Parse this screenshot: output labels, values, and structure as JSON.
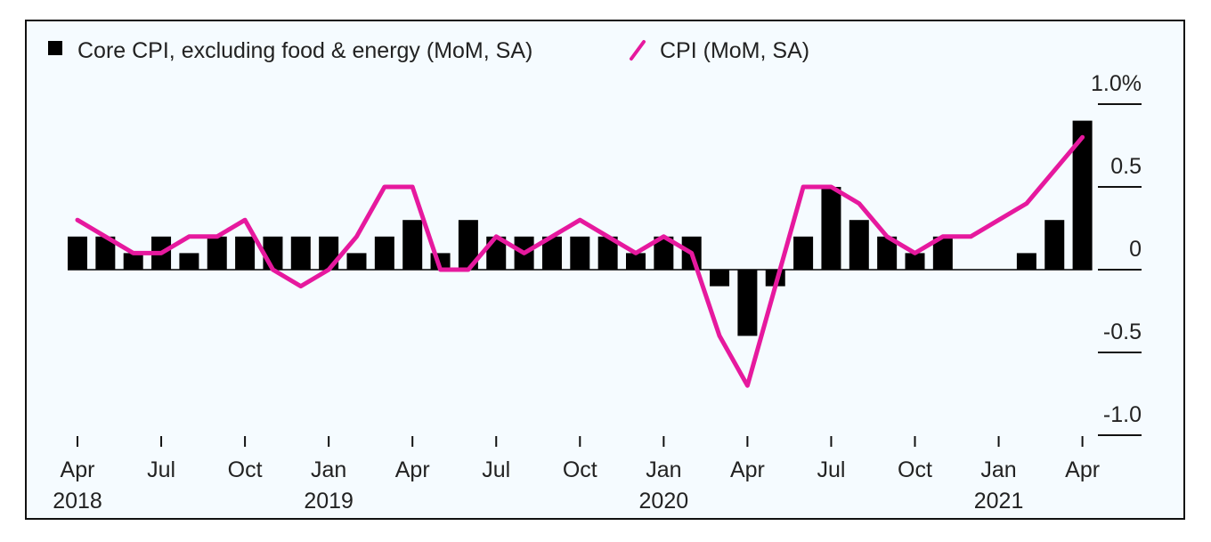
{
  "colors": {
    "bar": "#000000",
    "line": "#e6199e",
    "axis": "#111111",
    "background": "#f5fbff"
  },
  "legend": {
    "bar_label": "Core CPI, excluding food & energy (MoM, SA)",
    "line_label": "CPI (MoM, SA)"
  },
  "chart_data": {
    "type": "bar",
    "legend_position": "top-left",
    "y_axis_position": "right",
    "grid": false,
    "ylim": [
      -1.0,
      1.0
    ],
    "y_ticks": [
      {
        "value": 1.0,
        "label": "1.0%"
      },
      {
        "value": 0.5,
        "label": "0.5"
      },
      {
        "value": 0,
        "label": "0"
      },
      {
        "value": -0.5,
        "label": "-0.5"
      },
      {
        "value": -1.0,
        "label": "-1.0"
      }
    ],
    "x_ticks": [
      {
        "index": 0,
        "label": "Apr",
        "year": "2018"
      },
      {
        "index": 3,
        "label": "Jul",
        "year": ""
      },
      {
        "index": 6,
        "label": "Oct",
        "year": ""
      },
      {
        "index": 9,
        "label": "Jan",
        "year": "2019"
      },
      {
        "index": 12,
        "label": "Apr",
        "year": ""
      },
      {
        "index": 15,
        "label": "Jul",
        "year": ""
      },
      {
        "index": 18,
        "label": "Oct",
        "year": ""
      },
      {
        "index": 21,
        "label": "Jan",
        "year": "2020"
      },
      {
        "index": 24,
        "label": "Apr",
        "year": ""
      },
      {
        "index": 27,
        "label": "Jul",
        "year": ""
      },
      {
        "index": 30,
        "label": "Oct",
        "year": ""
      },
      {
        "index": 33,
        "label": "Jan",
        "year": "2021"
      },
      {
        "index": 36,
        "label": "Apr",
        "year": ""
      }
    ],
    "categories": [
      "2018-04",
      "2018-05",
      "2018-06",
      "2018-07",
      "2018-08",
      "2018-09",
      "2018-10",
      "2018-11",
      "2018-12",
      "2019-01",
      "2019-02",
      "2019-03",
      "2019-04",
      "2019-05",
      "2019-06",
      "2019-07",
      "2019-08",
      "2019-09",
      "2019-10",
      "2019-11",
      "2019-12",
      "2020-01",
      "2020-02",
      "2020-03",
      "2020-04",
      "2020-05",
      "2020-06",
      "2020-07",
      "2020-08",
      "2020-09",
      "2020-10",
      "2020-11",
      "2020-12",
      "2021-01",
      "2021-02",
      "2021-03",
      "2021-04"
    ],
    "series": [
      {
        "name": "Core CPI, excluding food & energy (MoM, SA)",
        "type": "bar",
        "values": [
          0.2,
          0.2,
          0.1,
          0.2,
          0.1,
          0.2,
          0.2,
          0.2,
          0.2,
          0.2,
          0.1,
          0.2,
          0.3,
          0.1,
          0.3,
          0.2,
          0.2,
          0.2,
          0.2,
          0.2,
          0.1,
          0.2,
          0.2,
          -0.1,
          -0.4,
          -0.1,
          0.2,
          0.5,
          0.3,
          0.2,
          0.1,
          0.2,
          0.0,
          0.0,
          0.1,
          0.3,
          0.9
        ]
      },
      {
        "name": "CPI (MoM, SA)",
        "type": "line",
        "values": [
          0.3,
          0.2,
          0.1,
          0.1,
          0.2,
          0.2,
          0.3,
          0.0,
          -0.1,
          0.0,
          0.2,
          0.5,
          0.5,
          0.0,
          0.0,
          0.2,
          0.1,
          0.2,
          0.3,
          0.2,
          0.1,
          0.2,
          0.1,
          -0.4,
          -0.7,
          -0.1,
          0.5,
          0.5,
          0.4,
          0.2,
          0.1,
          0.2,
          0.2,
          0.3,
          0.4,
          0.6,
          0.8
        ]
      }
    ]
  }
}
